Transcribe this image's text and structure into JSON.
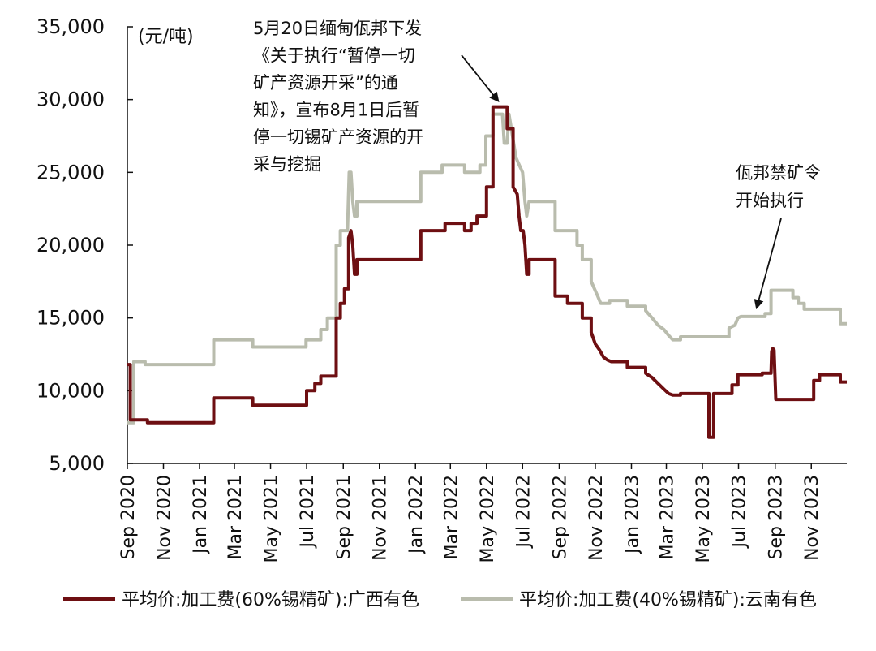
{
  "chart_data": {
    "type": "line",
    "unit_label": "(元/吨)",
    "ylim": [
      5000,
      35000
    ],
    "yticks": [
      5000,
      10000,
      15000,
      20000,
      25000,
      30000,
      35000
    ],
    "ytick_labels": [
      "5,000",
      "10,000",
      "15,000",
      "20,000",
      "25,000",
      "30,000",
      "35,000"
    ],
    "xlim": [
      "2020-09-01",
      "2023-12-31"
    ],
    "xticks": [
      "2020-09-01",
      "2020-11-01",
      "2021-01-01",
      "2021-03-01",
      "2021-05-01",
      "2021-07-01",
      "2021-09-01",
      "2021-11-01",
      "2022-01-01",
      "2022-03-01",
      "2022-05-01",
      "2022-07-01",
      "2022-09-01",
      "2022-11-01",
      "2023-01-01",
      "2023-03-01",
      "2023-05-01",
      "2023-07-01",
      "2023-09-01",
      "2023-11-01"
    ],
    "xtick_labels": [
      "Sep 2020",
      "Nov 2020",
      "Jan 2021",
      "Mar 2021",
      "May 2021",
      "Jul 2021",
      "Sep 2021",
      "Nov 2021",
      "Jan 2022",
      "Mar 2022",
      "May 2022",
      "Jul 2022",
      "Sep 2022",
      "Nov 2022",
      "Jan 2023",
      "Mar 2023",
      "May 2023",
      "Jul 2023",
      "Sep 2023",
      "Nov 2023"
    ],
    "grid": false,
    "legend_position": "bottom",
    "series": [
      {
        "name": "平均价:加工费(60%锡精矿):广西有色",
        "color": "#6e0f12",
        "points": [
          [
            "2020-09-01",
            11800
          ],
          [
            "2020-09-06",
            11800
          ],
          [
            "2020-09-06",
            8000
          ],
          [
            "2020-10-05",
            8000
          ],
          [
            "2020-10-05",
            7800
          ],
          [
            "2021-01-25",
            7800
          ],
          [
            "2021-01-25",
            9500
          ],
          [
            "2021-04-01",
            9500
          ],
          [
            "2021-04-01",
            9000
          ],
          [
            "2021-07-01",
            9000
          ],
          [
            "2021-07-01",
            10000
          ],
          [
            "2021-07-15",
            10000
          ],
          [
            "2021-07-15",
            10500
          ],
          [
            "2021-07-25",
            10500
          ],
          [
            "2021-07-25",
            11000
          ],
          [
            "2021-08-20",
            11000
          ],
          [
            "2021-08-20",
            15000
          ],
          [
            "2021-08-27",
            15000
          ],
          [
            "2021-08-27",
            16000
          ],
          [
            "2021-09-03",
            16000
          ],
          [
            "2021-09-03",
            17000
          ],
          [
            "2021-09-10",
            17000
          ],
          [
            "2021-09-10",
            20500
          ],
          [
            "2021-09-14",
            21000
          ],
          [
            "2021-09-17",
            20000
          ],
          [
            "2021-09-20",
            18000
          ],
          [
            "2021-09-24",
            18000
          ],
          [
            "2021-09-24",
            19000
          ],
          [
            "2022-01-10",
            19000
          ],
          [
            "2022-01-10",
            21000
          ],
          [
            "2022-02-20",
            21000
          ],
          [
            "2022-02-20",
            21500
          ],
          [
            "2022-03-25",
            21500
          ],
          [
            "2022-03-25",
            21000
          ],
          [
            "2022-04-05",
            21000
          ],
          [
            "2022-04-05",
            21500
          ],
          [
            "2022-04-15",
            21500
          ],
          [
            "2022-04-15",
            22000
          ],
          [
            "2022-05-01",
            22000
          ],
          [
            "2022-05-01",
            24000
          ],
          [
            "2022-05-12",
            24000
          ],
          [
            "2022-05-12",
            29500
          ],
          [
            "2022-06-05",
            29500
          ],
          [
            "2022-06-05",
            28000
          ],
          [
            "2022-06-15",
            28000
          ],
          [
            "2022-06-15",
            24000
          ],
          [
            "2022-06-22",
            23500
          ],
          [
            "2022-06-25",
            22000
          ],
          [
            "2022-06-28",
            21000
          ],
          [
            "2022-07-02",
            21000
          ],
          [
            "2022-07-05",
            20000
          ],
          [
            "2022-07-08",
            18000
          ],
          [
            "2022-07-12",
            18000
          ],
          [
            "2022-07-12",
            19000
          ],
          [
            "2022-08-25",
            19000
          ],
          [
            "2022-08-25",
            16500
          ],
          [
            "2022-09-15",
            16500
          ],
          [
            "2022-09-15",
            16000
          ],
          [
            "2022-10-10",
            16000
          ],
          [
            "2022-10-10",
            15000
          ],
          [
            "2022-10-25",
            15000
          ],
          [
            "2022-10-25",
            14000
          ],
          [
            "2022-11-01",
            13200
          ],
          [
            "2022-11-08",
            12800
          ],
          [
            "2022-11-15",
            12300
          ],
          [
            "2022-11-22",
            12100
          ],
          [
            "2022-11-28",
            12000
          ],
          [
            "2022-12-25",
            12000
          ],
          [
            "2022-12-25",
            11600
          ],
          [
            "2023-01-25",
            11600
          ],
          [
            "2023-01-25",
            11200
          ],
          [
            "2023-02-05",
            10900
          ],
          [
            "2023-02-15",
            10500
          ],
          [
            "2023-02-25",
            10100
          ],
          [
            "2023-03-05",
            9800
          ],
          [
            "2023-03-12",
            9700
          ],
          [
            "2023-03-25",
            9700
          ],
          [
            "2023-03-25",
            9800
          ],
          [
            "2023-05-12",
            9800
          ],
          [
            "2023-05-12",
            6800
          ],
          [
            "2023-05-20",
            6800
          ],
          [
            "2023-05-20",
            9800
          ],
          [
            "2023-06-20",
            9800
          ],
          [
            "2023-06-20",
            10400
          ],
          [
            "2023-06-30",
            10400
          ],
          [
            "2023-06-30",
            11100
          ],
          [
            "2023-08-10",
            11100
          ],
          [
            "2023-08-10",
            11200
          ],
          [
            "2023-08-25",
            11200
          ],
          [
            "2023-08-26",
            12700
          ],
          [
            "2023-08-28",
            12900
          ],
          [
            "2023-08-30",
            12800
          ],
          [
            "2023-09-02",
            9400
          ],
          [
            "2023-11-05",
            9400
          ],
          [
            "2023-11-05",
            10700
          ],
          [
            "2023-11-15",
            10700
          ],
          [
            "2023-11-15",
            11100
          ],
          [
            "2023-12-20",
            11100
          ],
          [
            "2023-12-20",
            10600
          ],
          [
            "2023-12-31",
            10600
          ]
        ]
      },
      {
        "name": "平均价:加工费(40%锡精矿):云南有色",
        "color": "#b9bcad",
        "points": [
          [
            "2020-09-01",
            7800
          ],
          [
            "2020-09-12",
            7800
          ],
          [
            "2020-09-12",
            12000
          ],
          [
            "2020-10-01",
            12000
          ],
          [
            "2020-10-01",
            11800
          ],
          [
            "2021-01-25",
            11800
          ],
          [
            "2021-01-25",
            13500
          ],
          [
            "2021-04-01",
            13500
          ],
          [
            "2021-04-01",
            13000
          ],
          [
            "2021-06-30",
            13000
          ],
          [
            "2021-06-30",
            13500
          ],
          [
            "2021-07-25",
            13500
          ],
          [
            "2021-07-25",
            14200
          ],
          [
            "2021-08-05",
            14200
          ],
          [
            "2021-08-05",
            15000
          ],
          [
            "2021-08-20",
            15000
          ],
          [
            "2021-08-20",
            20000
          ],
          [
            "2021-08-27",
            20000
          ],
          [
            "2021-08-27",
            21000
          ],
          [
            "2021-09-08",
            21000
          ],
          [
            "2021-09-11",
            25000
          ],
          [
            "2021-09-14",
            25000
          ],
          [
            "2021-09-17",
            23000
          ],
          [
            "2021-09-20",
            22000
          ],
          [
            "2021-09-24",
            22000
          ],
          [
            "2021-09-24",
            23000
          ],
          [
            "2022-01-10",
            23000
          ],
          [
            "2022-01-10",
            25000
          ],
          [
            "2022-02-15",
            25000
          ],
          [
            "2022-02-15",
            25500
          ],
          [
            "2022-03-25",
            25500
          ],
          [
            "2022-03-25",
            25000
          ],
          [
            "2022-04-20",
            25000
          ],
          [
            "2022-04-20",
            25500
          ],
          [
            "2022-04-30",
            25500
          ],
          [
            "2022-04-30",
            27500
          ],
          [
            "2022-05-12",
            27500
          ],
          [
            "2022-05-12",
            29000
          ],
          [
            "2022-05-28",
            29000
          ],
          [
            "2022-05-31",
            27000
          ],
          [
            "2022-06-05",
            27000
          ],
          [
            "2022-06-08",
            29000
          ],
          [
            "2022-06-12",
            28000
          ],
          [
            "2022-06-20",
            26000
          ],
          [
            "2022-07-01",
            25000
          ],
          [
            "2022-07-05",
            23000
          ],
          [
            "2022-07-08",
            22000
          ],
          [
            "2022-07-12",
            23000
          ],
          [
            "2022-08-25",
            23000
          ],
          [
            "2022-08-25",
            21000
          ],
          [
            "2022-10-01",
            21000
          ],
          [
            "2022-10-01",
            20000
          ],
          [
            "2022-10-10",
            20000
          ],
          [
            "2022-10-10",
            19000
          ],
          [
            "2022-10-25",
            19000
          ],
          [
            "2022-10-25",
            17500
          ],
          [
            "2022-11-05",
            16500
          ],
          [
            "2022-11-10",
            16000
          ],
          [
            "2022-11-25",
            16000
          ],
          [
            "2022-11-25",
            16200
          ],
          [
            "2022-12-25",
            16200
          ],
          [
            "2022-12-25",
            15800
          ],
          [
            "2023-01-25",
            15800
          ],
          [
            "2023-01-25",
            15500
          ],
          [
            "2023-02-05",
            15000
          ],
          [
            "2023-02-15",
            14500
          ],
          [
            "2023-02-25",
            14200
          ],
          [
            "2023-03-05",
            13800
          ],
          [
            "2023-03-12",
            13500
          ],
          [
            "2023-03-25",
            13500
          ],
          [
            "2023-03-25",
            13700
          ],
          [
            "2023-06-15",
            13700
          ],
          [
            "2023-06-15",
            14300
          ],
          [
            "2023-06-25",
            14500
          ],
          [
            "2023-06-30",
            15000
          ],
          [
            "2023-07-05",
            15100
          ],
          [
            "2023-08-15",
            15100
          ],
          [
            "2023-08-15",
            15300
          ],
          [
            "2023-08-25",
            15300
          ],
          [
            "2023-08-25",
            16900
          ],
          [
            "2023-10-01",
            16900
          ],
          [
            "2023-10-01",
            16400
          ],
          [
            "2023-10-10",
            16400
          ],
          [
            "2023-10-10",
            16000
          ],
          [
            "2023-10-20",
            16000
          ],
          [
            "2023-10-20",
            15600
          ],
          [
            "2023-12-20",
            15600
          ],
          [
            "2023-12-20",
            14600
          ],
          [
            "2023-12-31",
            14600
          ]
        ]
      }
    ],
    "annotations": [
      {
        "name": "myanmar-notice",
        "lines": [
          "5月20日缅甸佤邦下发",
          "《关于执行“暂停一切",
          "矿产资源开采”的通",
          "知》，宣布8月1日后暂",
          "停一切锡矿产资源的开",
          "采与挖掘"
        ],
        "arrow_to": [
          "2022-05-20",
          29500
        ]
      },
      {
        "name": "mining-ban",
        "lines": [
          "佤邦禁矿令",
          "开始执行"
        ],
        "arrow_to": [
          "2023-08-01",
          15300
        ]
      }
    ]
  }
}
